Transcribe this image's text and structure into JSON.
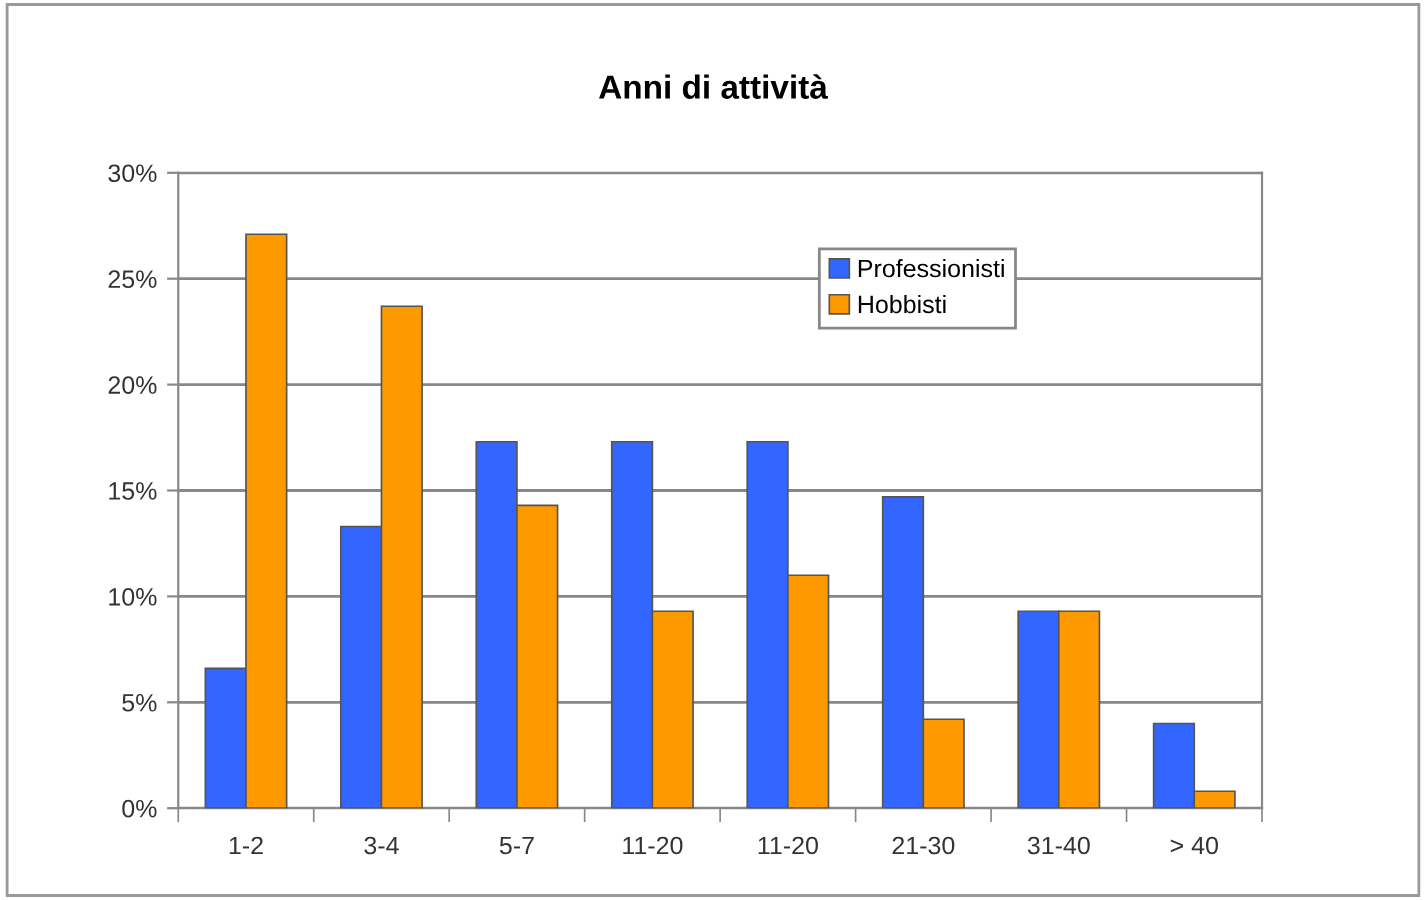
{
  "chart_data": {
    "type": "bar",
    "title": "Anni di attività",
    "categories": [
      "1-2",
      "3-4",
      "5-7",
      "11-20",
      "11-20",
      "21-30",
      "31-40",
      "> 40"
    ],
    "series": [
      {
        "name": "Professionisti",
        "color": "#3366ff",
        "values": [
          6.6,
          13.3,
          17.3,
          17.3,
          17.3,
          14.7,
          9.3,
          4.0
        ]
      },
      {
        "name": "Hobbisti",
        "color": "#ff9900",
        "values": [
          27.1,
          23.7,
          14.3,
          9.3,
          11.0,
          4.2,
          9.3,
          0.8
        ]
      }
    ],
    "ylim": [
      0,
      30
    ],
    "yticks": [
      {
        "value": 0,
        "label": "0%"
      },
      {
        "value": 5,
        "label": "5%"
      },
      {
        "value": 10,
        "label": "10%"
      },
      {
        "value": 15,
        "label": "15%"
      },
      {
        "value": 20,
        "label": "20%"
      },
      {
        "value": 25,
        "label": "25%"
      },
      {
        "value": 30,
        "label": "30%"
      }
    ],
    "grid": "y",
    "legend": "top right"
  }
}
